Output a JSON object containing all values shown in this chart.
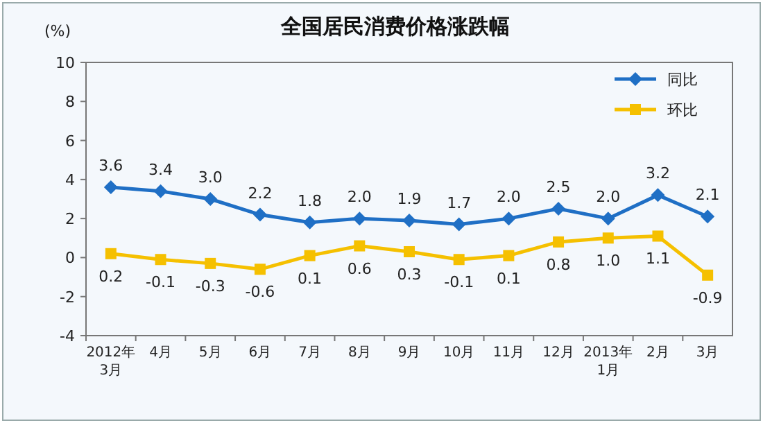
{
  "chart_data": {
    "type": "line",
    "title": "全国居民消费价格涨跌幅",
    "ylabel": "(%)",
    "categories": [
      "2012年\n3月",
      "4月",
      "5月",
      "6月",
      "7月",
      "8月",
      "9月",
      "10月",
      "11月",
      "12月",
      "2013年\n1月",
      "2月",
      "3月"
    ],
    "series": [
      {
        "name": "同比",
        "color": "#1f6fc5",
        "marker": "diamond",
        "values": [
          3.6,
          3.4,
          3.0,
          2.2,
          1.8,
          2.0,
          1.9,
          1.7,
          2.0,
          2.5,
          2.0,
          3.2,
          2.1
        ],
        "value_labels": [
          "3.6",
          "3.4",
          "3.0",
          "2.2",
          "1.8",
          "2.0",
          "1.9",
          "1.7",
          "2.0",
          "2.5",
          "2.0",
          "3.2",
          "2.1"
        ]
      },
      {
        "name": "环比",
        "color": "#f5c000",
        "marker": "square",
        "values": [
          0.2,
          -0.1,
          -0.3,
          -0.6,
          0.1,
          0.6,
          0.3,
          -0.1,
          0.1,
          0.8,
          1.0,
          1.1,
          -0.9
        ],
        "value_labels": [
          "0.2",
          "-0.1",
          "-0.3",
          "-0.6",
          "0.1",
          "0.6",
          "0.3",
          "-0.1",
          "0.1",
          "0.8",
          "1.0",
          "1.1",
          "-0.9"
        ]
      }
    ],
    "ylim": [
      -4,
      10
    ],
    "yticks": [
      -4,
      -2,
      0,
      2,
      4,
      6,
      8,
      10
    ],
    "grid": false,
    "legend": "top right"
  }
}
